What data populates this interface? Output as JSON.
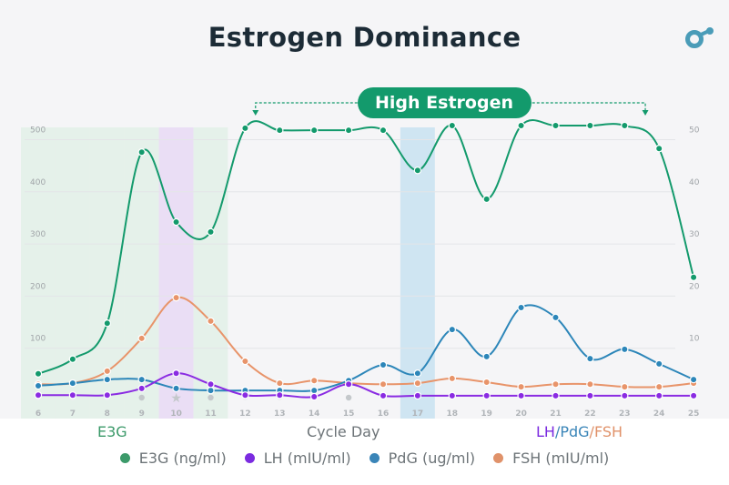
{
  "title": "Estrogen Dominance",
  "annotation": "High Estrogen",
  "colors": {
    "e3g": "#139a6c",
    "lh": "#8a2be2",
    "pdg": "#2c86b9",
    "fsh": "#e8946a",
    "logo": "#4a9cb8"
  },
  "axis_titles": {
    "left": "E3G",
    "x": "Cycle Day",
    "right": [
      "LH",
      "/",
      "PdG",
      "/",
      "FSH"
    ]
  },
  "legend": [
    {
      "label": "E3G (ng/ml)",
      "color": "#3c9a6a"
    },
    {
      "label": "LH (mIU/ml)",
      "color": "#7b2be0"
    },
    {
      "label": "PdG (ug/ml)",
      "color": "#3a85b8"
    },
    {
      "label": "FSH (mIU/ml)",
      "color": "#e0926a"
    }
  ],
  "chart_data": {
    "type": "line",
    "x": [
      6,
      7,
      8,
      9,
      10,
      11,
      12,
      13,
      14,
      15,
      16,
      17,
      18,
      19,
      20,
      21,
      22,
      23,
      24,
      25
    ],
    "xlabel": "Cycle Day",
    "y_left": {
      "label": "E3G",
      "lim": [
        0,
        500
      ],
      "ticks": [
        100,
        200,
        300,
        400,
        500
      ]
    },
    "y_right": {
      "label": "LH/PdG/FSH",
      "lim": [
        0,
        50
      ],
      "ticks": [
        10,
        20,
        30,
        40,
        50
      ]
    },
    "grid": true,
    "highlighted_days": {
      "green": [
        6,
        7,
        8,
        9,
        11
      ],
      "purple": [
        10
      ],
      "blue": [
        17
      ]
    },
    "day_markers": {
      "dot": [
        9,
        11,
        15
      ],
      "star": [
        10
      ],
      "faint": [
        6,
        7,
        8,
        12,
        13
      ]
    },
    "annotation_range": [
      12.3,
      23.6
    ],
    "series": [
      {
        "name": "E3G (ng/ml)",
        "axis": "left",
        "key": "e3g",
        "values": [
          51,
          79,
          148,
          476,
          342,
          323,
          522,
          518,
          518,
          518,
          518,
          441,
          527,
          386,
          527,
          527,
          527,
          527,
          483,
          236
        ]
      },
      {
        "name": "LH (mIU/ml)",
        "axis": "right",
        "key": "lh",
        "values": [
          1.0,
          1.0,
          1.0,
          2.3,
          5.2,
          3.1,
          1.0,
          1.0,
          0.7,
          3.1,
          0.9,
          0.9,
          0.9,
          0.9,
          0.9,
          0.9,
          0.9,
          0.9,
          0.9,
          0.9
        ]
      },
      {
        "name": "PdG (ug/ml)",
        "axis": "right",
        "key": "pdg",
        "values": [
          2.8,
          3.3,
          4.0,
          4.0,
          2.3,
          1.9,
          1.9,
          1.9,
          1.9,
          3.8,
          6.8,
          5.2,
          13.6,
          8.4,
          17.8,
          15.9,
          8.0,
          9.8,
          7.0,
          4.0
        ]
      },
      {
        "name": "FSH (mIU/ml)",
        "axis": "right",
        "key": "fsh",
        "values": [
          3.1,
          3.3,
          5.6,
          11.9,
          19.7,
          15.2,
          7.5,
          3.3,
          3.8,
          3.3,
          3.1,
          3.3,
          4.2,
          3.5,
          2.6,
          3.1,
          3.1,
          2.6,
          2.6,
          3.3
        ]
      }
    ]
  }
}
